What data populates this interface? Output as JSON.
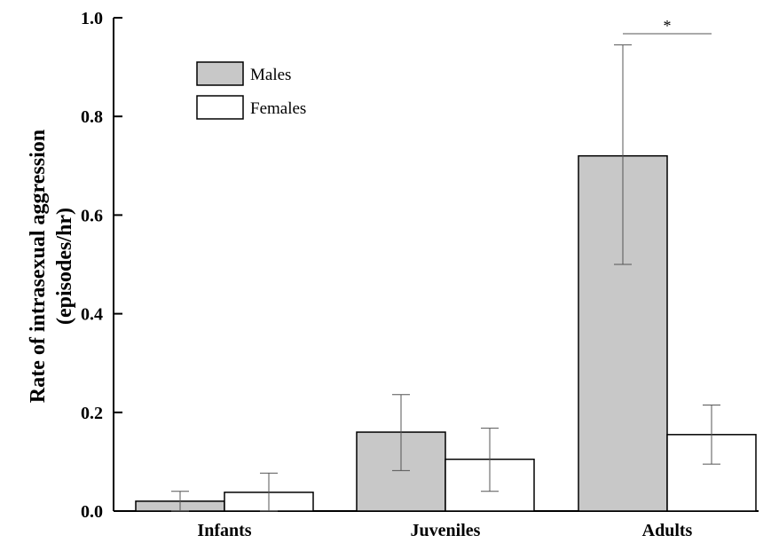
{
  "chart_data": {
    "type": "bar",
    "categories": [
      "Infants",
      "Juveniles",
      "Adults"
    ],
    "series": [
      {
        "name": "Males",
        "color": "#c8c8c8",
        "values": [
          0.02,
          0.16,
          0.72
        ],
        "error_low": [
          0.0,
          0.082,
          0.5
        ],
        "error_high": [
          0.04,
          0.236,
          0.945
        ]
      },
      {
        "name": "Females",
        "color": "#ffffff",
        "values": [
          0.038,
          0.105,
          0.155
        ],
        "error_low": [
          0.0,
          0.04,
          0.095
        ],
        "error_high": [
          0.077,
          0.168,
          0.215
        ]
      }
    ],
    "ylabel_line1": "Rate of intrasexual aggression",
    "ylabel_line2": "(episodes/hr)",
    "ylim": [
      0.0,
      1.0
    ],
    "yticks": [
      "0.0",
      "0.2",
      "0.4",
      "0.6",
      "0.8",
      "1.0"
    ],
    "legend_position": "top-left",
    "annotation": {
      "label": "*",
      "category": "Adults"
    }
  }
}
